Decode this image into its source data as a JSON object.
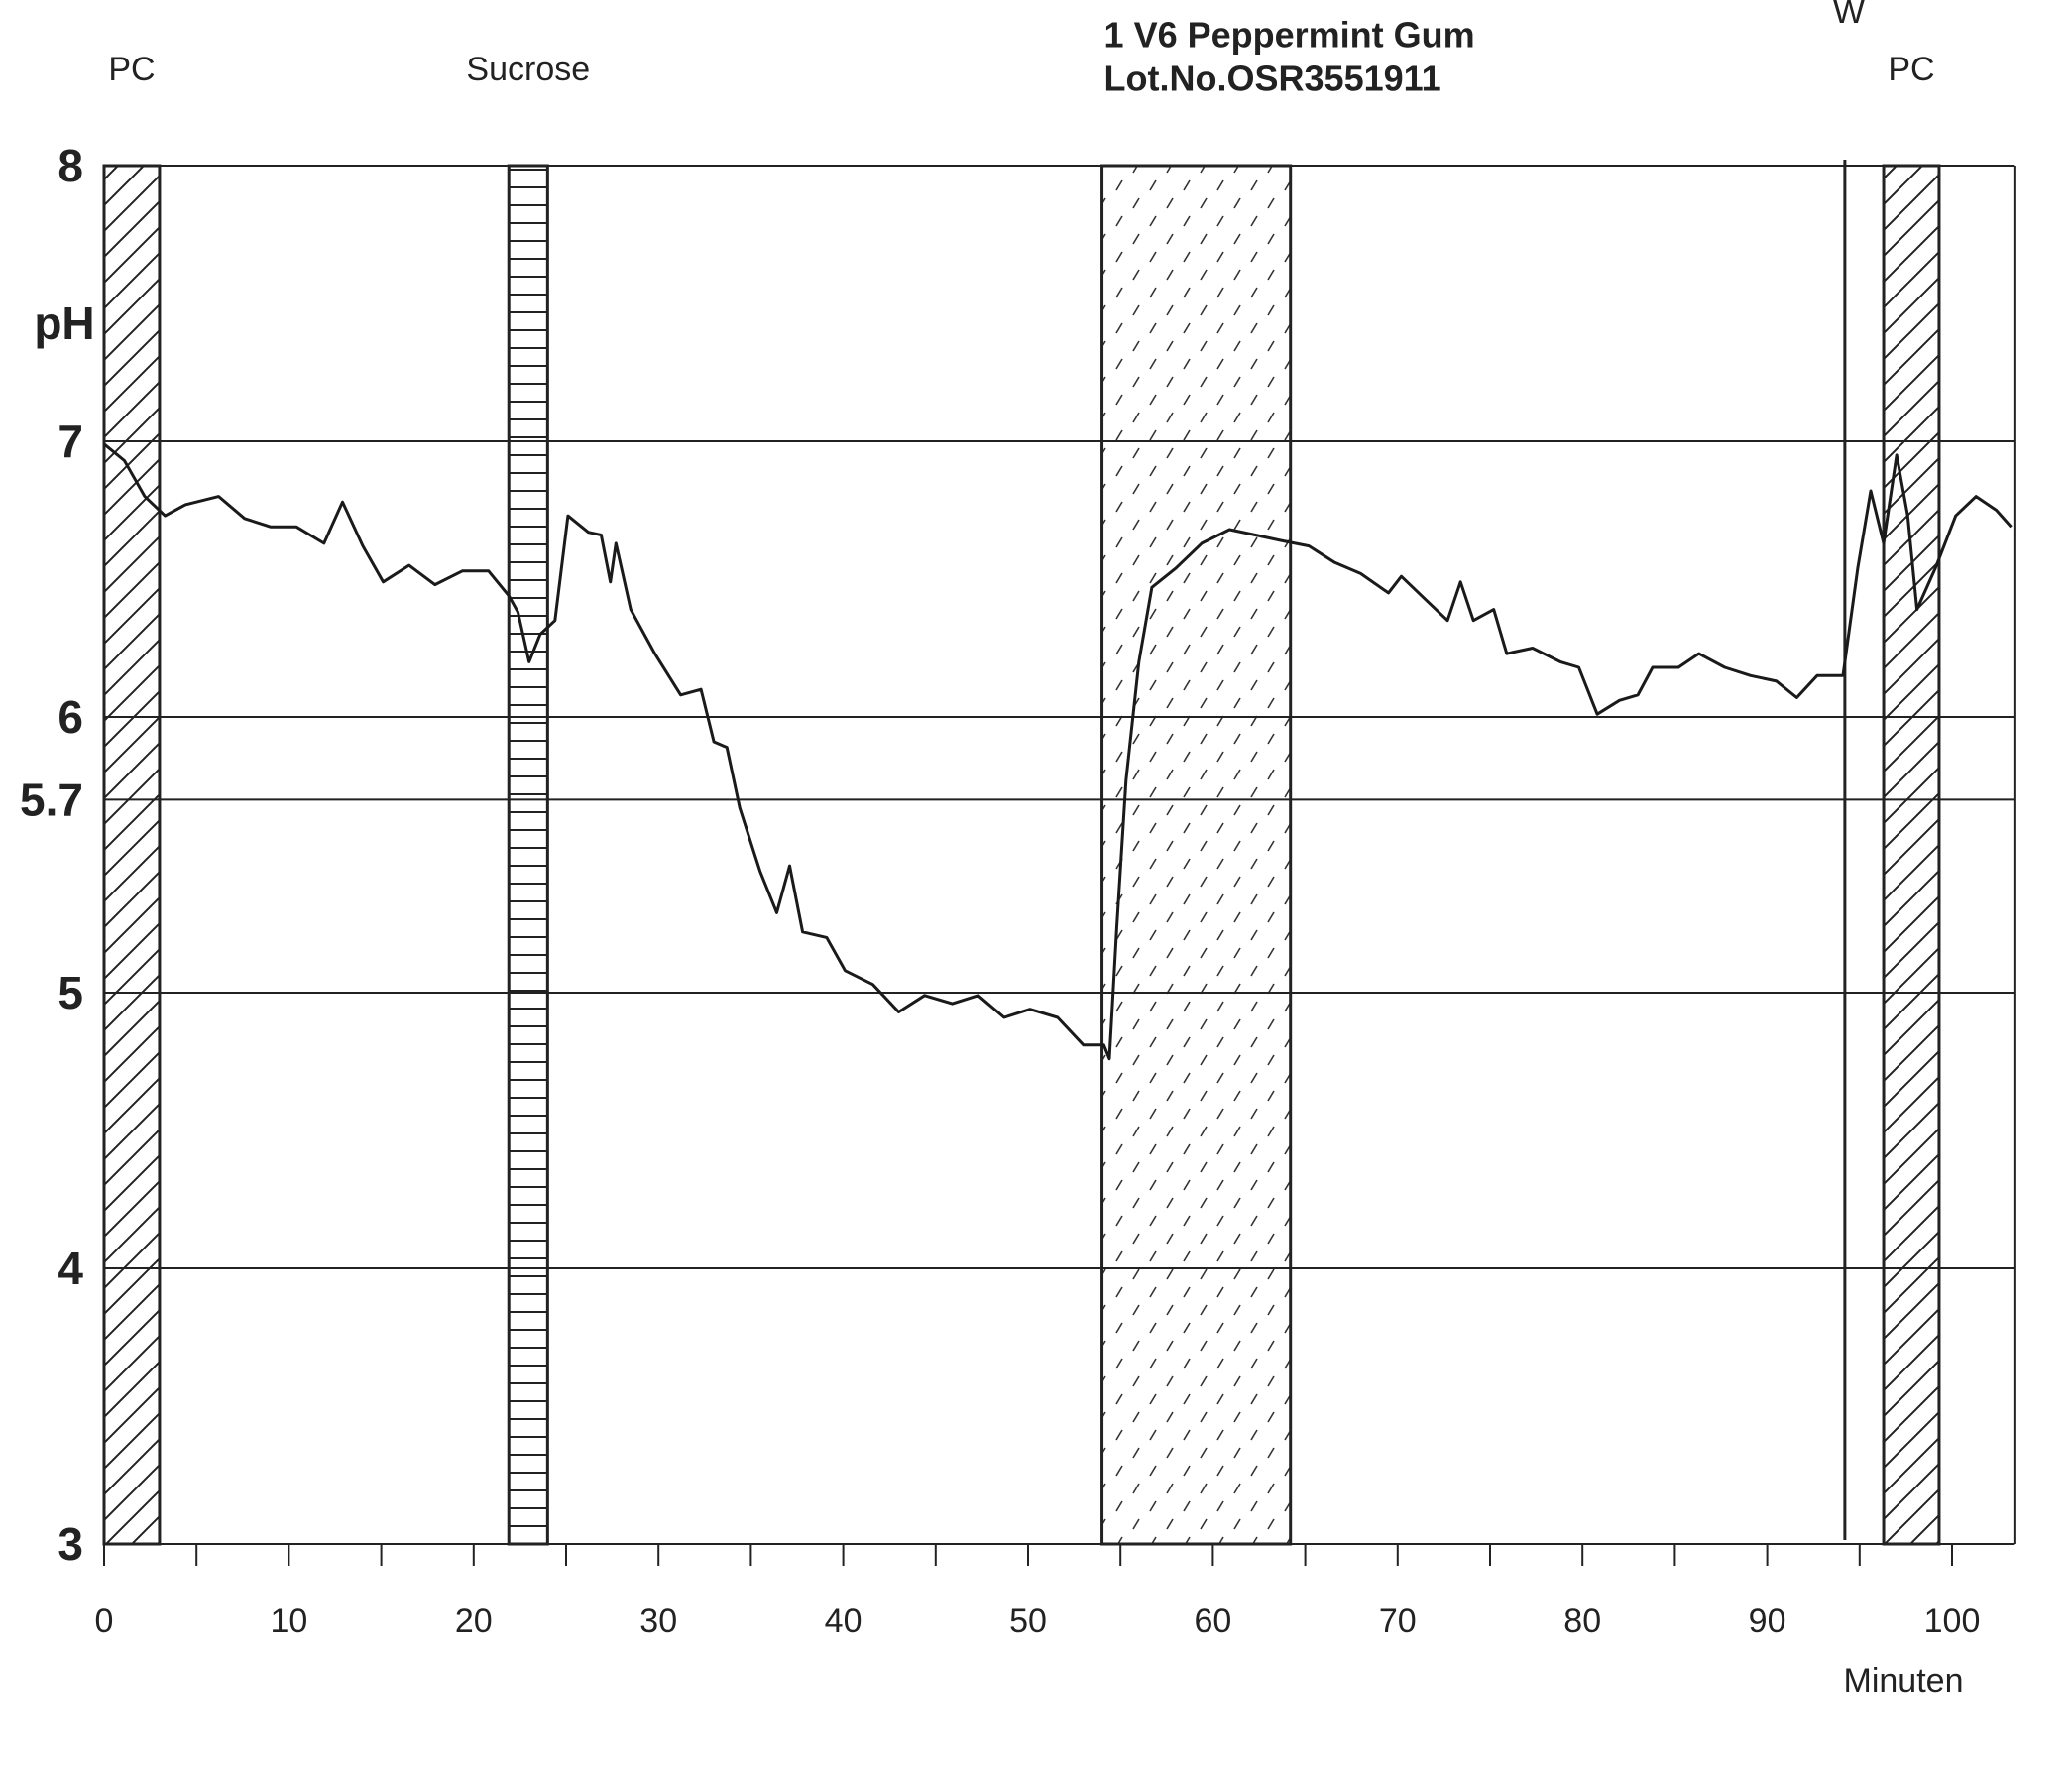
{
  "chart_data": {
    "type": "line",
    "y_label": "pH",
    "x_label": "Minuten",
    "xlim": [
      0,
      103.4
    ],
    "ylim": [
      3,
      8
    ],
    "xticks": [
      0,
      10,
      20,
      30,
      40,
      50,
      60,
      70,
      80,
      90,
      100
    ],
    "xminorticks": [
      5,
      15,
      25,
      35,
      45,
      55,
      65,
      75,
      85,
      95
    ],
    "yticks": [
      3,
      4,
      5,
      5.7,
      6,
      7,
      8
    ],
    "grid": true,
    "regions": [
      {
        "label": "PC",
        "x0": 0,
        "x1": 3,
        "pattern": "diagonal"
      },
      {
        "label": "Sucrose",
        "x0": 21.9,
        "x1": 24.0,
        "pattern": "horizontal"
      },
      {
        "label": [
          "1 V6 Peppermint Gum",
          "Lot.No.OSR3551911"
        ],
        "x0": 54.0,
        "x1": 64.2,
        "pattern": "dashes"
      },
      {
        "label": "PC",
        "x0": 96.3,
        "x1": 99.3,
        "pattern": "diagonal"
      }
    ],
    "markers": [
      {
        "label": "W",
        "x": 94.2
      }
    ],
    "x": [
      0,
      1.1,
      2.2,
      3.3,
      4.4,
      6.2,
      7.6,
      9.0,
      10.4,
      11.9,
      12.9,
      14.0,
      15.1,
      16.5,
      17.9,
      19.4,
      20.8,
      21.9,
      22.4,
      23.0,
      23.6,
      24.4,
      25.1,
      26.2,
      26.9,
      27.4,
      27.7,
      28.5,
      29.8,
      31.2,
      32.3,
      33.0,
      33.7,
      34.4,
      35.5,
      36.4,
      37.1,
      37.8,
      39.1,
      40.1,
      41.6,
      43.0,
      44.4,
      45.9,
      47.3,
      48.7,
      50.1,
      51.6,
      53.0,
      54.1,
      54.4,
      54.8,
      55.3,
      56.0,
      56.7,
      58.0,
      59.4,
      60.9,
      62.3,
      63.7,
      65.2,
      66.6,
      68.0,
      69.5,
      70.2,
      71.6,
      72.7,
      73.4,
      74.1,
      75.2,
      75.9,
      77.3,
      78.8,
      79.8,
      80.8,
      82.0,
      83.0,
      83.8,
      85.2,
      86.3,
      87.7,
      89.1,
      90.5,
      91.6,
      92.7,
      94.1,
      94.9,
      95.6,
      96.3,
      97.0,
      97.6,
      98.1,
      99.1,
      100.2,
      101.3,
      102.4,
      103.2
    ],
    "series": [
      {
        "color": "#1a1a1a",
        "values": [
          6.99,
          6.93,
          6.8,
          6.73,
          6.77,
          6.8,
          6.72,
          6.69,
          6.69,
          6.63,
          6.78,
          6.62,
          6.49,
          6.55,
          6.48,
          6.53,
          6.53,
          6.44,
          6.38,
          6.2,
          6.3,
          6.35,
          6.73,
          6.67,
          6.66,
          6.49,
          6.63,
          6.39,
          6.23,
          6.08,
          6.1,
          5.91,
          5.89,
          5.67,
          5.44,
          5.29,
          5.46,
          5.22,
          5.2,
          5.08,
          5.03,
          4.93,
          4.99,
          4.96,
          4.99,
          4.91,
          4.94,
          4.91,
          4.81,
          4.81,
          4.76,
          5.24,
          5.77,
          6.2,
          6.47,
          6.54,
          6.63,
          6.68,
          6.66,
          6.64,
          6.62,
          6.56,
          6.52,
          6.45,
          6.51,
          6.42,
          6.35,
          6.49,
          6.35,
          6.39,
          6.23,
          6.25,
          6.2,
          6.18,
          6.01,
          6.06,
          6.08,
          6.18,
          6.18,
          6.23,
          6.18,
          6.15,
          6.13,
          6.07,
          6.15,
          6.15,
          6.54,
          6.82,
          6.63,
          6.95,
          6.73,
          6.39,
          6.54,
          6.73,
          6.8,
          6.75,
          6.69
        ]
      }
    ]
  }
}
